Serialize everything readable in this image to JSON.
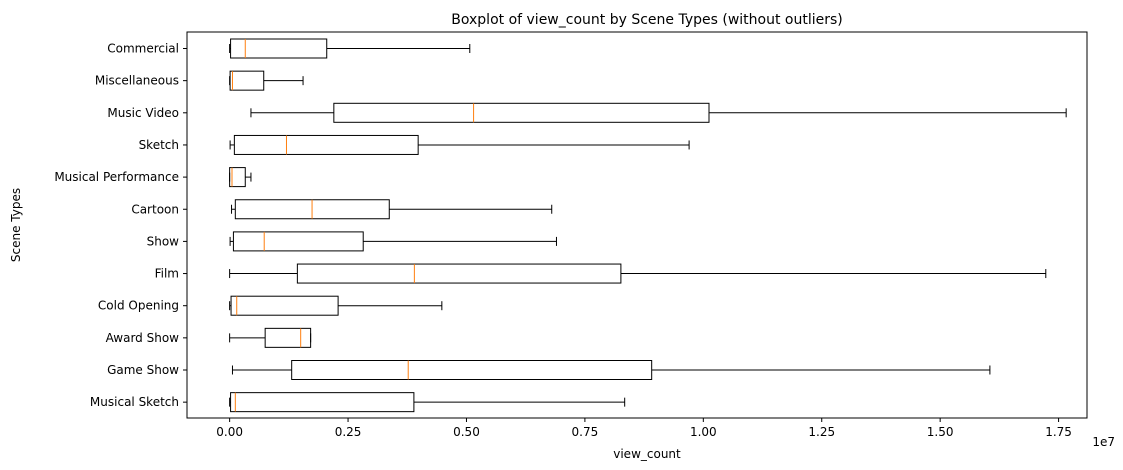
{
  "chart_data": {
    "type": "boxplot",
    "title": "Boxplot of view_count by Scene Types (without outliers)",
    "xlabel": "view_count",
    "ylabel": "Scene Types",
    "x_scale_note": "1e7",
    "xlim": [
      -0.09,
      1.81
    ],
    "x_ticks": [
      0.0,
      0.25,
      0.5,
      0.75,
      1.0,
      1.25,
      1.5,
      1.75
    ],
    "x_tick_labels": [
      "0.00",
      "0.25",
      "0.50",
      "0.75",
      "1.00",
      "1.25",
      "1.50",
      "1.75"
    ],
    "grid": false,
    "box_color": "#000000",
    "median_color": "#ff7f0e",
    "categories": [
      "Commercial",
      "Miscellaneous",
      "Music Video",
      "Sketch",
      "Musical Performance",
      "Cartoon",
      "Show",
      "Film",
      "Cold Opening",
      "Award Show",
      "Game Show",
      "Musical Sketch"
    ],
    "boxes": [
      {
        "whisker_low": 0.0,
        "q1": 0.002,
        "median": 0.033,
        "q3": 0.205,
        "whisker_high": 0.507
      },
      {
        "whisker_low": 0.0,
        "q1": 0.001,
        "median": 0.006,
        "q3": 0.072,
        "whisker_high": 0.155
      },
      {
        "whisker_low": 0.045,
        "q1": 0.22,
        "median": 0.515,
        "q3": 1.012,
        "whisker_high": 1.766
      },
      {
        "whisker_low": 0.001,
        "q1": 0.01,
        "median": 0.12,
        "q3": 0.398,
        "whisker_high": 0.97
      },
      {
        "whisker_low": 0.0,
        "q1": 0.0,
        "median": 0.005,
        "q3": 0.033,
        "whisker_high": 0.045
      },
      {
        "whisker_low": 0.004,
        "q1": 0.012,
        "median": 0.174,
        "q3": 0.337,
        "whisker_high": 0.68
      },
      {
        "whisker_low": 0.001,
        "q1": 0.008,
        "median": 0.073,
        "q3": 0.282,
        "whisker_high": 0.69
      },
      {
        "whisker_low": 0.0,
        "q1": 0.143,
        "median": 0.39,
        "q3": 0.826,
        "whisker_high": 1.723
      },
      {
        "whisker_low": 0.0,
        "q1": 0.003,
        "median": 0.015,
        "q3": 0.229,
        "whisker_high": 0.448
      },
      {
        "whisker_low": 0.0,
        "q1": 0.075,
        "median": 0.15,
        "q3": 0.171,
        "whisker_high": 0.171
      },
      {
        "whisker_low": 0.006,
        "q1": 0.131,
        "median": 0.377,
        "q3": 0.891,
        "whisker_high": 1.605
      },
      {
        "whisker_low": 0.0,
        "q1": 0.002,
        "median": 0.012,
        "q3": 0.389,
        "whisker_high": 0.834
      }
    ]
  }
}
